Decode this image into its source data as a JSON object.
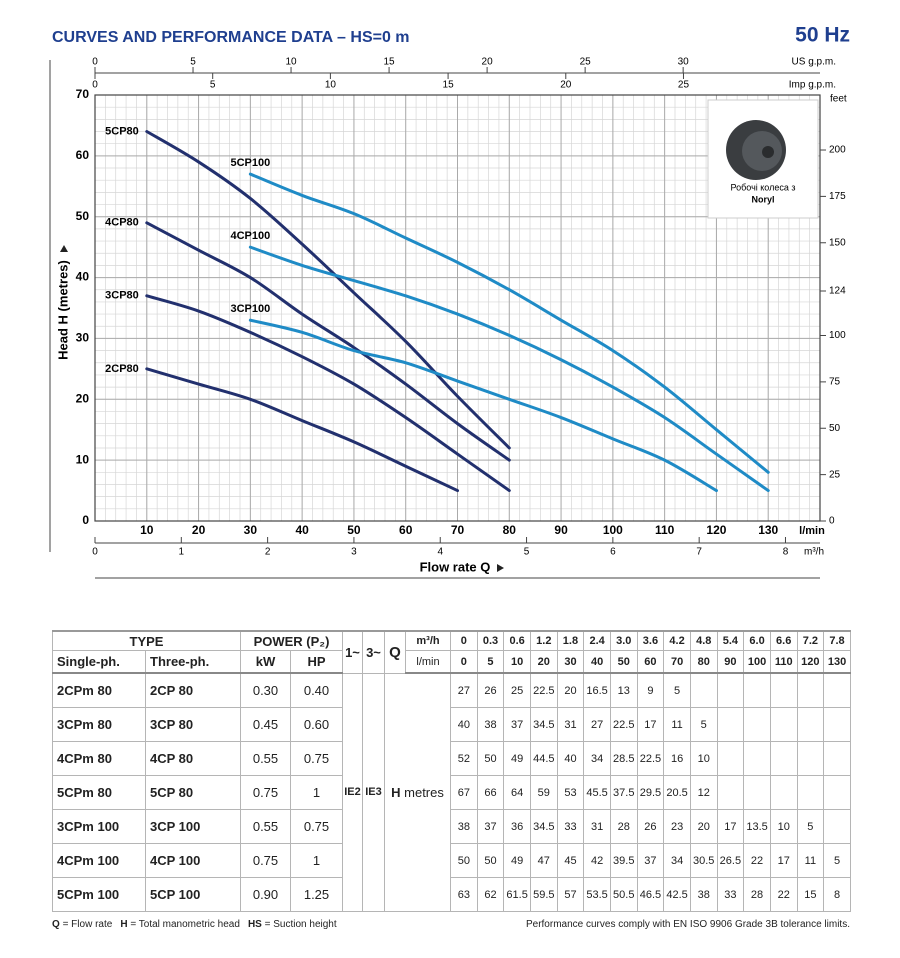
{
  "header": {
    "title": "CURVES AND PERFORMANCE DATA – HS=0 m",
    "frequency": "50 Hz"
  },
  "chart_data": {
    "type": "line",
    "ylabel": "Head H (metres)",
    "xlabel": "Flow rate Q",
    "xunit": "l/min",
    "xlim": [
      0,
      140
    ],
    "xticks": [
      10,
      20,
      30,
      40,
      50,
      60,
      70,
      80,
      90,
      100,
      110,
      120,
      130
    ],
    "ylim": [
      0,
      70
    ],
    "yticks": [
      0,
      10,
      20,
      30,
      40,
      50,
      60,
      70
    ],
    "grid": true,
    "minor_grid_step": {
      "x": 2,
      "y": 2
    },
    "us_gpm": {
      "label": "US g.p.m.",
      "lim": [
        0,
        36.98
      ],
      "ticks": [
        0,
        5,
        10,
        15,
        20,
        25,
        30
      ]
    },
    "imp_gpm": {
      "label": "Imp g.p.m.",
      "lim": [
        0,
        30.8
      ],
      "ticks": [
        0,
        5,
        10,
        15,
        20,
        25
      ]
    },
    "m3h": {
      "label": "m³/h",
      "lim": [
        0,
        8.4
      ],
      "ticks": [
        0,
        1,
        2,
        3,
        4,
        5,
        6,
        7,
        8
      ]
    },
    "feet": {
      "label": "feet",
      "lim": [
        0,
        229.66
      ],
      "ticks": [
        0,
        25,
        50,
        75,
        100,
        124,
        150,
        175,
        200
      ]
    },
    "series": [
      {
        "name": "5CP80",
        "color": "#22306e",
        "x": [
          10,
          20,
          30,
          40,
          50,
          60,
          70,
          80
        ],
        "values": [
          64,
          59,
          53,
          45.5,
          37.5,
          29.5,
          20.5,
          12
        ]
      },
      {
        "name": "4CP80",
        "color": "#22306e",
        "x": [
          10,
          20,
          30,
          40,
          50,
          60,
          70,
          80
        ],
        "values": [
          49,
          44.5,
          40,
          34,
          28.5,
          22.5,
          16,
          10
        ]
      },
      {
        "name": "3CP80",
        "color": "#22306e",
        "x": [
          10,
          20,
          30,
          40,
          50,
          60,
          70,
          80
        ],
        "values": [
          37,
          34.5,
          31,
          27,
          22.5,
          17,
          11,
          5
        ]
      },
      {
        "name": "2CP80",
        "color": "#22306e",
        "x": [
          10,
          20,
          30,
          40,
          50,
          60,
          70
        ],
        "values": [
          25,
          22.5,
          20,
          16.5,
          13,
          9,
          5
        ]
      },
      {
        "name": "5CP100",
        "color": "#1f8bc6",
        "x": [
          30,
          40,
          50,
          60,
          70,
          80,
          90,
          100,
          110,
          120,
          130
        ],
        "values": [
          57,
          53.5,
          50.5,
          46.5,
          42.5,
          38,
          33,
          28,
          22,
          15,
          8
        ]
      },
      {
        "name": "4CP100",
        "color": "#1f8bc6",
        "x": [
          30,
          40,
          50,
          60,
          70,
          80,
          90,
          100,
          110,
          120,
          130
        ],
        "values": [
          45,
          42,
          39.5,
          37,
          34,
          30.5,
          26.5,
          22,
          17,
          11,
          5
        ]
      },
      {
        "name": "3CP100",
        "color": "#1f8bc6",
        "x": [
          30,
          40,
          50,
          60,
          70,
          80,
          90,
          100,
          110,
          120
        ],
        "values": [
          33,
          31,
          28,
          26,
          23,
          20,
          17,
          13.5,
          10,
          5
        ]
      }
    ]
  },
  "inset": {
    "caption": "Робочі колеса з",
    "material": "Noryl"
  },
  "table": {
    "header": {
      "type": "TYPE",
      "power": "POWER (P₂)",
      "single": "Single-ph.",
      "three": "Three-ph.",
      "kw": "kW",
      "hp": "HP",
      "phase1": "1~",
      "phase3": "3~",
      "q": "Q",
      "q_m3h": "m³/h",
      "q_lmin": "l/min",
      "m3h": [
        "0",
        "0.3",
        "0.6",
        "1.2",
        "1.8",
        "2.4",
        "3.0",
        "3.6",
        "4.2",
        "4.8",
        "5.4",
        "6.0",
        "6.6",
        "7.2",
        "7.8"
      ],
      "lmin": [
        0,
        5,
        10,
        20,
        30,
        40,
        50,
        60,
        70,
        80,
        90,
        100,
        110,
        120,
        130
      ]
    },
    "ie": [
      "IE2",
      "IE3"
    ],
    "head": {
      "symbol": "H",
      "unit": "metres"
    },
    "rows": [
      {
        "single": "2CPm 80",
        "three": "2CP 80",
        "kw": "0.30",
        "hp": "0.40",
        "head": [
          27,
          26,
          25,
          22.5,
          20,
          16.5,
          13,
          9,
          5
        ]
      },
      {
        "single": "3CPm 80",
        "three": "3CP 80",
        "kw": "0.45",
        "hp": "0.60",
        "head": [
          40,
          38,
          37,
          34.5,
          31,
          27,
          22.5,
          17,
          11,
          5
        ]
      },
      {
        "single": "4CPm 80",
        "three": "4CP 80",
        "kw": "0.55",
        "hp": "0.75",
        "head": [
          52,
          50,
          49,
          44.5,
          40,
          34,
          28.5,
          22.5,
          16,
          10
        ]
      },
      {
        "single": "5CPm 80",
        "three": "5CP 80",
        "kw": "0.75",
        "hp": "1",
        "head": [
          67,
          66,
          64,
          59,
          53,
          45.5,
          37.5,
          29.5,
          20.5,
          12
        ]
      },
      {
        "single": "3CPm 100",
        "three": "3CP 100",
        "kw": "0.55",
        "hp": "0.75",
        "head": [
          38,
          37,
          36,
          34.5,
          33,
          31,
          28,
          26,
          23,
          20,
          17,
          13.5,
          10,
          5
        ]
      },
      {
        "single": "4CPm 100",
        "three": "4CP 100",
        "kw": "0.75",
        "hp": "1",
        "head": [
          50,
          50,
          49,
          47,
          45,
          42,
          39.5,
          37,
          34,
          30.5,
          26.5,
          22,
          17,
          11,
          5
        ]
      },
      {
        "single": "5CPm 100",
        "three": "5CP 100",
        "kw": "0.90",
        "hp": "1.25",
        "head": [
          63,
          62,
          61.5,
          59.5,
          57,
          53.5,
          50.5,
          46.5,
          42.5,
          38,
          33,
          28,
          22,
          15,
          8
        ]
      }
    ]
  },
  "footer": {
    "legend": [
      {
        "symbol": "Q",
        "text": "= Flow rate"
      },
      {
        "symbol": "H",
        "text": "= Total manometric head"
      },
      {
        "symbol": "HS",
        "text": "= Suction height"
      }
    ],
    "note": "Performance curves comply with EN ISO 9906 Grade 3B tolerance limits."
  }
}
